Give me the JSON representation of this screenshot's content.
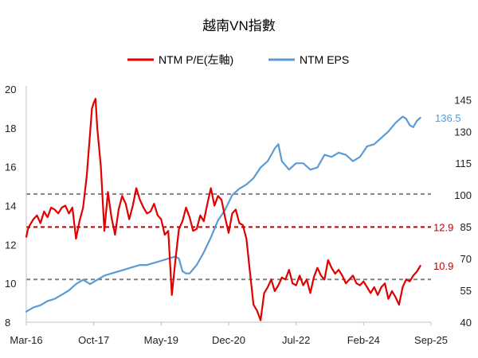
{
  "chart_data": {
    "type": "line",
    "title": "越南VN指數",
    "legend_position": "top-center",
    "x_tick_labels": [
      "Mar-16",
      "Oct-17",
      "May-19",
      "Dec-20",
      "Jul-22",
      "Feb-24",
      "Sep-25"
    ],
    "x_range_months": [
      0,
      114
    ],
    "left_axis": {
      "ylim": [
        8,
        20
      ],
      "ticks": [
        8,
        10,
        12,
        14,
        16,
        18,
        20
      ]
    },
    "right_axis": {
      "ylim": [
        40,
        150
      ],
      "ticks": [
        40,
        55,
        70,
        85,
        100,
        115,
        130,
        145
      ]
    },
    "series": [
      {
        "name": "NTM P/E(左軸)",
        "axis": "left",
        "color": "#e00000",
        "x": [
          0,
          0.5,
          1,
          2,
          3,
          4,
          5,
          6,
          7,
          8,
          9,
          10,
          11,
          12,
          13,
          14,
          15,
          16,
          17,
          18,
          18.5,
          19,
          19.5,
          20,
          21,
          22,
          23,
          24,
          25,
          26,
          27,
          28,
          29,
          30,
          31,
          32,
          33,
          34,
          35,
          36,
          37,
          38,
          39,
          40,
          41,
          42,
          43,
          44,
          45,
          46,
          47,
          48,
          49,
          50,
          51,
          52,
          53,
          54,
          55,
          56,
          57,
          58,
          59,
          60,
          61,
          62,
          63,
          64,
          65,
          66,
          67,
          68,
          69,
          70,
          71,
          72,
          73,
          74,
          75,
          76,
          77,
          78,
          79,
          80,
          81,
          82,
          83,
          84,
          85,
          86,
          87,
          88,
          89,
          90,
          91,
          92,
          93,
          94,
          95,
          96,
          97,
          98,
          99,
          100,
          101,
          102,
          103,
          104,
          105,
          106,
          107,
          108,
          109,
          110,
          111
        ],
        "values": [
          12.4,
          12.8,
          13.0,
          13.3,
          13.5,
          13.1,
          13.7,
          13.4,
          13.9,
          13.8,
          13.6,
          13.9,
          14.0,
          13.6,
          13.9,
          12.3,
          13.2,
          13.9,
          15.5,
          17.8,
          19.0,
          19.3,
          19.5,
          18.0,
          16.0,
          12.7,
          14.7,
          13.4,
          12.5,
          13.8,
          14.5,
          14.1,
          13.3,
          14.0,
          14.9,
          14.3,
          13.9,
          13.6,
          13.7,
          14.1,
          13.5,
          13.3,
          12.5,
          12.7,
          9.4,
          11.2,
          12.8,
          13.2,
          13.9,
          13.4,
          12.7,
          12.8,
          13.5,
          13.2,
          14.1,
          14.9,
          14.0,
          14.5,
          14.3,
          13.4,
          12.6,
          13.6,
          13.8,
          13.1,
          13.0,
          12.3,
          10.6,
          8.9,
          8.6,
          8.1,
          9.5,
          9.8,
          10.2,
          9.6,
          9.9,
          10.3,
          10.2,
          10.7,
          10.0,
          9.9,
          10.4,
          9.9,
          10.2,
          9.5,
          10.3,
          10.8,
          10.4,
          10.2,
          11.2,
          10.8,
          10.5,
          10.7,
          10.4,
          10.0,
          10.2,
          10.4,
          10.0,
          9.9,
          10.1,
          9.8,
          9.5,
          9.8,
          9.4,
          9.8,
          10.0,
          9.2,
          9.6,
          9.3,
          8.9,
          9.8,
          10.2,
          10.1,
          10.4,
          10.6,
          10.9
        ],
        "end_label": "10.9"
      },
      {
        "name": "NTM EPS",
        "axis": "right",
        "color": "#5b9bd5",
        "x": [
          0,
          2,
          4,
          6,
          8,
          10,
          12,
          14,
          16,
          18,
          20,
          22,
          24,
          26,
          28,
          30,
          32,
          34,
          36,
          38,
          40,
          42,
          43,
          44,
          45,
          46,
          48,
          50,
          52,
          54,
          56,
          58,
          60,
          62,
          64,
          66,
          68,
          70,
          71,
          72,
          73,
          74,
          76,
          78,
          80,
          82,
          84,
          86,
          88,
          90,
          92,
          94,
          96,
          98,
          100,
          102,
          104,
          106,
          107,
          108,
          109,
          110,
          111
        ],
        "values": [
          45,
          47,
          48,
          50,
          51,
          53,
          55,
          58,
          60,
          58,
          60,
          62,
          63,
          64,
          65,
          66,
          67,
          67,
          68,
          69,
          70,
          71,
          70,
          64,
          63,
          63,
          67,
          73,
          80,
          88,
          93,
          100,
          103,
          105,
          108,
          113,
          116,
          122,
          124,
          116,
          114,
          112,
          115,
          115,
          112,
          113,
          119,
          118,
          120,
          119,
          116,
          118,
          123,
          124,
          127,
          130,
          134,
          137,
          136,
          133,
          132,
          135,
          136.5
        ],
        "end_label": "136.5"
      }
    ],
    "reference_lines": [
      {
        "axis": "left",
        "value": 14.6,
        "color": "#808080",
        "style": "dashed"
      },
      {
        "axis": "left",
        "value": 12.9,
        "color": "#c00000",
        "style": "dashed",
        "label": "12.9"
      },
      {
        "axis": "left",
        "value": 10.2,
        "color": "#808080",
        "style": "dashed"
      }
    ]
  }
}
